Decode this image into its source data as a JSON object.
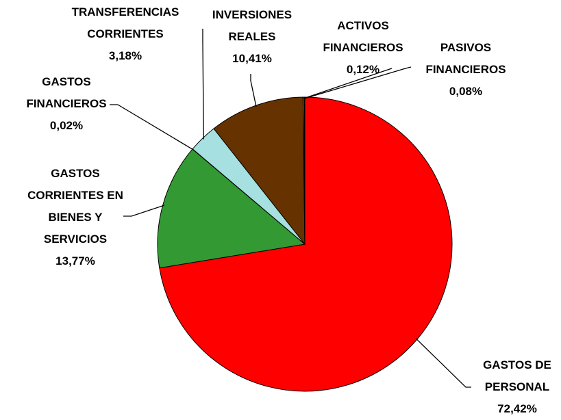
{
  "chart_data": {
    "type": "pie",
    "categories": [
      "GASTOS DE PERSONAL",
      "GASTOS CORRIENTES EN BIENES Y SERVICIOS",
      "GASTOS FINANCIEROS",
      "TRANSFERENCIAS CORRIENTES",
      "INVERSIONES REALES",
      "ACTIVOS FINANCIEROS",
      "PASIVOS FINANCIEROS"
    ],
    "values": [
      72.42,
      13.77,
      0.02,
      3.18,
      10.41,
      0.12,
      0.08
    ],
    "value_labels": [
      "72,42%",
      "13,77%",
      "0,02%",
      "3,18%",
      "10,41%",
      "0,12%",
      "0,08%"
    ],
    "colors": [
      "#ff0000",
      "#339933",
      "#3366cc",
      "#a6e0e0",
      "#663300",
      "#ff9999",
      "#800000"
    ]
  }
}
